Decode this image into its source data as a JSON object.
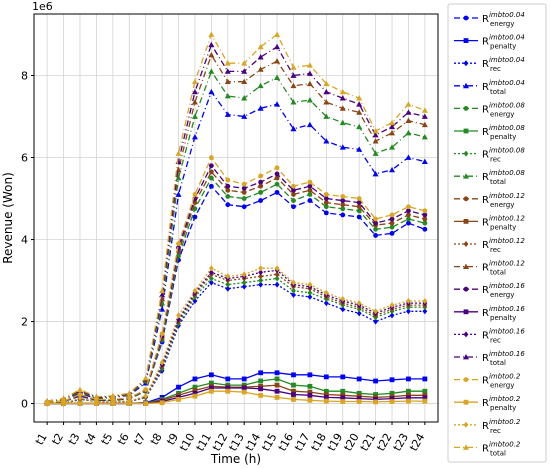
{
  "chart_data": {
    "type": "line",
    "xlabel": "Time (h)",
    "ylabel": "Revenue (Won)",
    "y_multiplier": "1e6",
    "ylim": [
      -0.45,
      9.5
    ],
    "yticks": [
      0,
      2,
      4,
      6,
      8
    ],
    "yticklabels": [
      "0",
      "2",
      "4",
      "6",
      "8"
    ],
    "grid": true,
    "legend_position": "right outside",
    "categories": [
      "t1",
      "t2",
      "t3",
      "t4",
      "t5",
      "t6",
      "t7",
      "t8",
      "t9",
      "t10",
      "t11",
      "t12",
      "t13",
      "t14",
      "t15",
      "t16",
      "t17",
      "t18",
      "t19",
      "t20",
      "t21",
      "t22",
      "t23",
      "t24"
    ],
    "series": [
      {
        "name": "R_energy^imbto0.04",
        "base": "R",
        "sub": "energy",
        "sup": "imbto0.04",
        "color": "#0000ff",
        "dash": "6,3",
        "marker": "circle",
        "values": [
          0.03,
          0.05,
          0.18,
          0.08,
          0.08,
          0.12,
          0.3,
          1.5,
          3.5,
          4.55,
          5.3,
          4.85,
          4.8,
          4.95,
          5.15,
          4.8,
          4.95,
          4.65,
          4.6,
          4.55,
          4.1,
          4.15,
          4.4,
          4.25
        ]
      },
      {
        "name": "R_penalty^imbto0.04",
        "base": "R",
        "sub": "penalty",
        "sup": "imbto0.04",
        "color": "#0000ff",
        "dash": "",
        "marker": "square",
        "values": [
          0.0,
          0.0,
          0.0,
          0.0,
          0.0,
          0.0,
          0.02,
          0.15,
          0.4,
          0.6,
          0.7,
          0.6,
          0.6,
          0.75,
          0.75,
          0.7,
          0.7,
          0.65,
          0.65,
          0.6,
          0.55,
          0.58,
          0.6,
          0.6
        ]
      },
      {
        "name": "R_rec^imbto0.04",
        "base": "R",
        "sub": "rec",
        "sup": "imbto0.04",
        "color": "#0000ff",
        "dash": "2,2",
        "marker": "diamond",
        "values": [
          0.0,
          0.0,
          0.1,
          0.05,
          0.05,
          0.05,
          0.15,
          0.8,
          1.9,
          2.5,
          2.95,
          2.8,
          2.85,
          2.9,
          2.9,
          2.65,
          2.6,
          2.45,
          2.3,
          2.2,
          2.0,
          2.15,
          2.25,
          2.25
        ]
      },
      {
        "name": "R_total^imbto0.04",
        "base": "R",
        "sub": "total",
        "sup": "imbto0.04",
        "color": "#0000ff",
        "dash": "6,3,1,3",
        "marker": "triangle",
        "values": [
          0.05,
          0.1,
          0.25,
          0.12,
          0.15,
          0.2,
          0.5,
          2.3,
          5.1,
          6.5,
          7.6,
          7.05,
          7.0,
          7.2,
          7.3,
          6.7,
          6.8,
          6.4,
          6.25,
          6.2,
          5.6,
          5.7,
          6.0,
          5.9
        ]
      },
      {
        "name": "R_energy^imbto0.08",
        "base": "R",
        "sub": "energy",
        "sup": "imbto0.08",
        "color": "#228b22",
        "dash": "6,3",
        "marker": "circle",
        "values": [
          0.03,
          0.05,
          0.2,
          0.08,
          0.08,
          0.12,
          0.3,
          1.55,
          3.6,
          4.75,
          5.5,
          5.05,
          5.0,
          5.15,
          5.35,
          4.95,
          5.1,
          4.8,
          4.75,
          4.7,
          4.25,
          4.3,
          4.5,
          4.4
        ]
      },
      {
        "name": "R_penalty^imbto0.08",
        "base": "R",
        "sub": "penalty",
        "sup": "imbto0.08",
        "color": "#228b22",
        "dash": "",
        "marker": "square",
        "values": [
          0.0,
          0.0,
          0.0,
          0.0,
          0.0,
          0.0,
          0.01,
          0.1,
          0.25,
          0.4,
          0.5,
          0.45,
          0.45,
          0.55,
          0.6,
          0.45,
          0.42,
          0.3,
          0.3,
          0.25,
          0.22,
          0.25,
          0.3,
          0.3
        ]
      },
      {
        "name": "R_rec^imbto0.08",
        "base": "R",
        "sub": "rec",
        "sup": "imbto0.08",
        "color": "#228b22",
        "dash": "2,2",
        "marker": "diamond",
        "values": [
          0.0,
          0.0,
          0.1,
          0.05,
          0.05,
          0.05,
          0.15,
          0.85,
          1.95,
          2.6,
          3.05,
          2.9,
          2.95,
          3.0,
          3.05,
          2.75,
          2.7,
          2.55,
          2.4,
          2.3,
          2.1,
          2.25,
          2.35,
          2.35
        ]
      },
      {
        "name": "R_total^imbto0.08",
        "base": "R",
        "sub": "total",
        "sup": "imbto0.08",
        "color": "#228b22",
        "dash": "6,3,1,3",
        "marker": "triangle",
        "values": [
          0.05,
          0.1,
          0.28,
          0.14,
          0.16,
          0.22,
          0.55,
          2.45,
          5.5,
          7.0,
          8.1,
          7.5,
          7.45,
          7.75,
          7.95,
          7.35,
          7.4,
          7.0,
          6.85,
          6.75,
          6.1,
          6.25,
          6.6,
          6.5
        ]
      },
      {
        "name": "R_energy^imbto0.12",
        "base": "R",
        "sub": "energy",
        "sup": "imbto0.12",
        "color": "#8b4513",
        "dash": "6,3",
        "marker": "circle",
        "values": [
          0.03,
          0.06,
          0.2,
          0.09,
          0.09,
          0.13,
          0.32,
          1.6,
          3.7,
          4.9,
          5.65,
          5.2,
          5.15,
          5.3,
          5.5,
          5.1,
          5.2,
          4.9,
          4.85,
          4.8,
          4.35,
          4.4,
          4.6,
          4.5
        ]
      },
      {
        "name": "R_penalty^imbto0.12",
        "base": "R",
        "sub": "penalty",
        "sup": "imbto0.12",
        "color": "#8b4513",
        "dash": "",
        "marker": "square",
        "values": [
          0.0,
          0.0,
          0.0,
          0.0,
          0.0,
          0.0,
          0.01,
          0.08,
          0.2,
          0.32,
          0.42,
          0.4,
          0.4,
          0.42,
          0.45,
          0.3,
          0.28,
          0.22,
          0.2,
          0.18,
          0.15,
          0.17,
          0.2,
          0.2
        ]
      },
      {
        "name": "R_rec^imbto0.12",
        "base": "R",
        "sub": "rec",
        "sup": "imbto0.12",
        "color": "#8b4513",
        "dash": "2,2",
        "marker": "diamond",
        "values": [
          0.0,
          0.0,
          0.11,
          0.05,
          0.05,
          0.05,
          0.16,
          0.9,
          2.0,
          2.65,
          3.15,
          3.0,
          3.05,
          3.1,
          3.15,
          2.85,
          2.8,
          2.6,
          2.45,
          2.35,
          2.15,
          2.3,
          2.4,
          2.4
        ]
      },
      {
        "name": "R_total^imbto0.12",
        "base": "R",
        "sub": "total",
        "sup": "imbto0.12",
        "color": "#8b4513",
        "dash": "6,3,1,3",
        "marker": "triangle",
        "values": [
          0.05,
          0.11,
          0.3,
          0.15,
          0.17,
          0.23,
          0.58,
          2.55,
          5.7,
          7.35,
          8.5,
          7.85,
          7.85,
          8.15,
          8.35,
          7.75,
          7.8,
          7.35,
          7.2,
          7.1,
          6.4,
          6.6,
          6.9,
          6.8
        ]
      },
      {
        "name": "R_energy^imbto0.16",
        "base": "R",
        "sub": "energy",
        "sup": "imbto0.16",
        "color": "#4b0082",
        "dash": "6,3",
        "marker": "circle",
        "values": [
          0.03,
          0.06,
          0.21,
          0.09,
          0.09,
          0.13,
          0.33,
          1.65,
          3.8,
          5.0,
          5.8,
          5.3,
          5.25,
          5.4,
          5.6,
          5.2,
          5.3,
          5.0,
          4.95,
          4.9,
          4.4,
          4.5,
          4.7,
          4.6
        ]
      },
      {
        "name": "R_penalty^imbto0.16",
        "base": "R",
        "sub": "penalty",
        "sup": "imbto0.16",
        "color": "#4b0082",
        "dash": "",
        "marker": "square",
        "values": [
          0.0,
          0.0,
          0.0,
          0.0,
          0.0,
          0.0,
          0.0,
          0.05,
          0.15,
          0.25,
          0.38,
          0.38,
          0.38,
          0.36,
          0.3,
          0.22,
          0.2,
          0.15,
          0.14,
          0.12,
          0.1,
          0.12,
          0.14,
          0.14
        ]
      },
      {
        "name": "R_rec^imbto0.16",
        "base": "R",
        "sub": "rec",
        "sup": "imbto0.16",
        "color": "#4b0082",
        "dash": "2,2",
        "marker": "diamond",
        "values": [
          0.0,
          0.0,
          0.12,
          0.05,
          0.05,
          0.05,
          0.17,
          0.95,
          2.05,
          2.7,
          3.2,
          3.05,
          3.1,
          3.2,
          3.25,
          2.9,
          2.85,
          2.65,
          2.5,
          2.4,
          2.2,
          2.35,
          2.45,
          2.45
        ]
      },
      {
        "name": "R_total^imbto0.16",
        "base": "R",
        "sub": "total",
        "sup": "imbto0.16",
        "color": "#4b0082",
        "dash": "6,3,1,3",
        "marker": "triangle",
        "values": [
          0.06,
          0.12,
          0.32,
          0.16,
          0.18,
          0.24,
          0.6,
          2.65,
          5.9,
          7.6,
          8.75,
          8.1,
          8.1,
          8.45,
          8.7,
          8.0,
          8.05,
          7.6,
          7.45,
          7.3,
          6.55,
          6.75,
          7.1,
          7.0
        ]
      },
      {
        "name": "R_energy^imbto0.2",
        "base": "R",
        "sub": "energy",
        "sup": "imbto0.2",
        "color": "#daa520",
        "dash": "6,3",
        "marker": "circle",
        "values": [
          0.03,
          0.06,
          0.22,
          0.1,
          0.1,
          0.14,
          0.34,
          1.7,
          3.9,
          5.1,
          6.0,
          5.45,
          5.35,
          5.55,
          5.75,
          5.3,
          5.4,
          5.1,
          5.05,
          5.0,
          4.5,
          4.6,
          4.8,
          4.7
        ]
      },
      {
        "name": "R_penalty^imbto0.2",
        "base": "R",
        "sub": "penalty",
        "sup": "imbto0.2",
        "color": "#daa520",
        "dash": "",
        "marker": "square",
        "values": [
          0.0,
          0.0,
          0.0,
          0.0,
          0.0,
          0.0,
          0.0,
          0.02,
          0.1,
          0.18,
          0.3,
          0.3,
          0.28,
          0.2,
          0.15,
          0.1,
          0.08,
          0.06,
          0.05,
          0.05,
          0.04,
          0.05,
          0.06,
          0.06
        ]
      },
      {
        "name": "R_rec^imbto0.2",
        "base": "R",
        "sub": "rec",
        "sup": "imbto0.2",
        "color": "#daa520",
        "dash": "2,2",
        "marker": "diamond",
        "values": [
          0.0,
          0.0,
          0.13,
          0.05,
          0.05,
          0.06,
          0.18,
          1.0,
          2.15,
          2.75,
          3.3,
          3.1,
          3.15,
          3.3,
          3.3,
          2.95,
          2.9,
          2.7,
          2.55,
          2.45,
          2.25,
          2.4,
          2.5,
          2.5
        ]
      },
      {
        "name": "R_total^imbto0.2",
        "base": "R",
        "sub": "total",
        "sup": "imbto0.2",
        "color": "#daa520",
        "dash": "6,3,1,3",
        "marker": "triangle",
        "values": [
          0.06,
          0.12,
          0.34,
          0.17,
          0.19,
          0.25,
          0.62,
          2.75,
          6.1,
          7.85,
          9.0,
          8.3,
          8.3,
          8.7,
          9.0,
          8.2,
          8.25,
          7.8,
          7.6,
          7.45,
          6.65,
          6.85,
          7.3,
          7.15
        ]
      }
    ]
  }
}
